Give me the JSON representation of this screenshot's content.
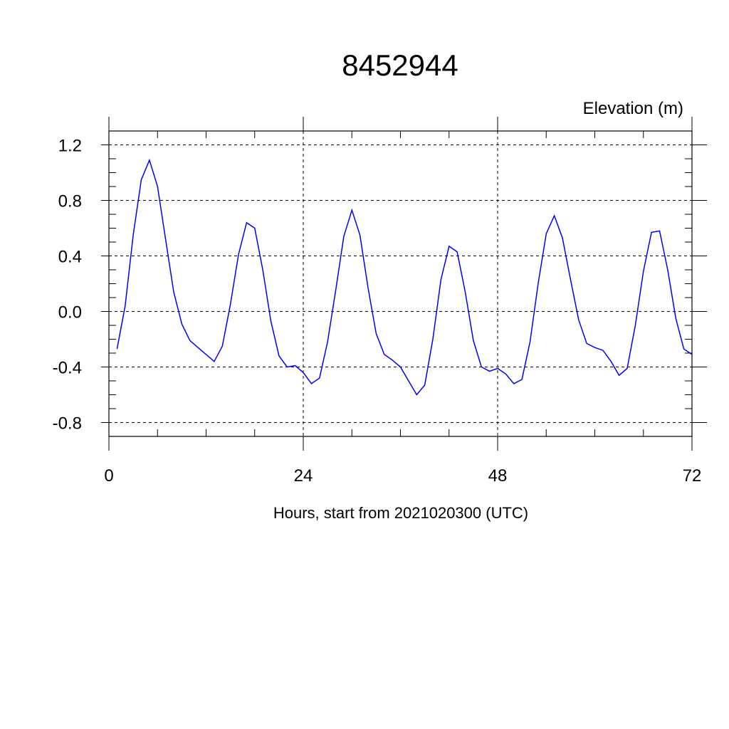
{
  "chart_data": {
    "type": "line",
    "title": "8452944",
    "ylabel": "Elevation (m)",
    "xlabel": "Hours, start from 2021020300 (UTC)",
    "xlim": [
      0,
      72
    ],
    "ylim": [
      -0.9,
      1.3
    ],
    "xticks": [
      0,
      24,
      48,
      72
    ],
    "xtick_labels": [
      "0",
      "24",
      "48",
      "72"
    ],
    "yticks": [
      1.2,
      0.8,
      0.4,
      0.0,
      -0.4,
      -0.8
    ],
    "ytick_labels": [
      "1.2",
      "0.8",
      "0.4",
      "0.0",
      "-0.4",
      "-0.8"
    ],
    "grid": "dashed",
    "series": [
      {
        "color": "#0000ff",
        "x": [
          1,
          2,
          3,
          4,
          5,
          6,
          7,
          8,
          9,
          10,
          11,
          12,
          13,
          14,
          15,
          16,
          17,
          18,
          19,
          20,
          21,
          22,
          23,
          24,
          25,
          26,
          27,
          28,
          29,
          30,
          31,
          32,
          33,
          34,
          35,
          36,
          37,
          38,
          39,
          40,
          41,
          42,
          43,
          44,
          45,
          46,
          47,
          48,
          49,
          50,
          51,
          52,
          53,
          54,
          55,
          56,
          57,
          58,
          59,
          60,
          61,
          62,
          63,
          64,
          65,
          66,
          67,
          68,
          69,
          70,
          71,
          72
        ],
        "y": [
          -0.27,
          0.04,
          0.55,
          0.95,
          1.09,
          0.9,
          0.52,
          0.14,
          -0.09,
          -0.21,
          -0.26,
          -0.31,
          -0.36,
          -0.25,
          0.05,
          0.41,
          0.64,
          0.6,
          0.3,
          -0.07,
          -0.32,
          -0.4,
          -0.39,
          -0.44,
          -0.52,
          -0.48,
          -0.22,
          0.15,
          0.54,
          0.73,
          0.55,
          0.17,
          -0.16,
          -0.31,
          -0.35,
          -0.4,
          -0.5,
          -0.6,
          -0.53,
          -0.2,
          0.23,
          0.47,
          0.43,
          0.14,
          -0.21,
          -0.4,
          -0.43,
          -0.41,
          -0.45,
          -0.52,
          -0.49,
          -0.22,
          0.2,
          0.56,
          0.69,
          0.53,
          0.23,
          -0.06,
          -0.23,
          -0.26,
          -0.28,
          -0.36,
          -0.46,
          -0.41,
          -0.1,
          0.29,
          0.57,
          0.58,
          0.3,
          -0.05,
          -0.27,
          -0.31
        ]
      }
    ]
  }
}
